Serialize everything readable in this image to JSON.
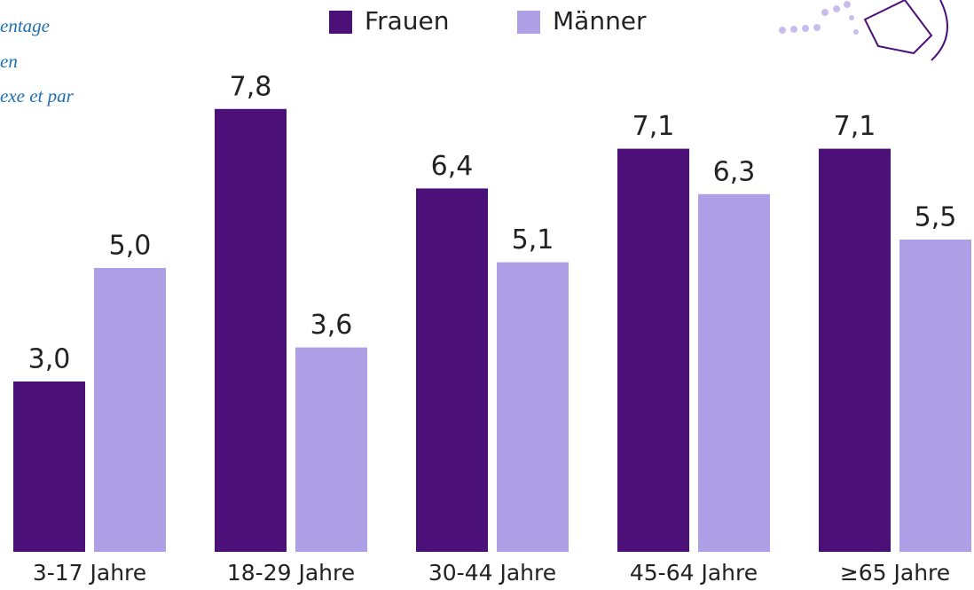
{
  "chart_data": {
    "type": "bar",
    "annotations": [
      "entage",
      "en",
      "exe et par"
    ],
    "categories": [
      "3-17 Jahre",
      "18-29 Jahre",
      "30-44 Jahre",
      "45-64 Jahre",
      "≥65 Jahre"
    ],
    "series": [
      {
        "name": "Frauen",
        "color": "#4b1178",
        "values": [
          3.0,
          7.8,
          6.4,
          7.1,
          7.1
        ],
        "value_labels": [
          "3,0",
          "7,8",
          "6,4",
          "7,1",
          "7,1"
        ]
      },
      {
        "name": "Männer",
        "color": "#ae9fe6",
        "values": [
          5.0,
          3.6,
          5.1,
          6.3,
          5.5
        ],
        "value_labels": [
          "5,0",
          "3,6",
          "5,1",
          "6,3",
          "5,5"
        ]
      }
    ]
  }
}
